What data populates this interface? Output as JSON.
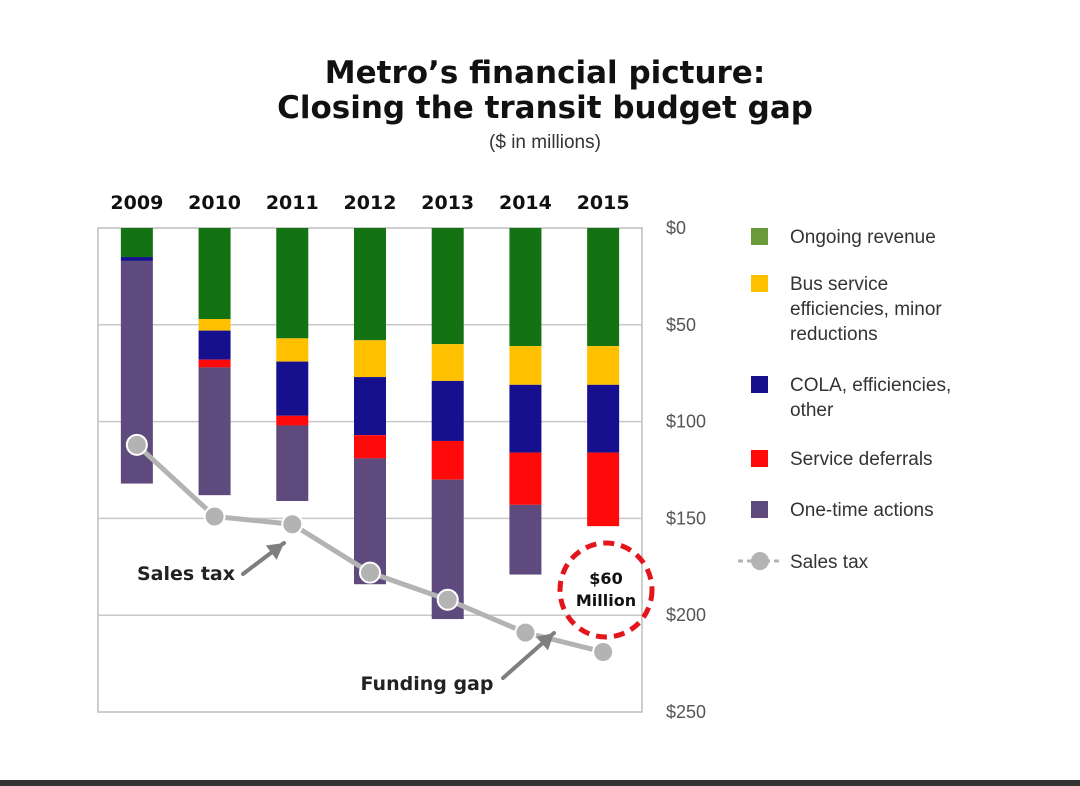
{
  "chart_data": {
    "type": "bar",
    "title_lines": [
      "Metro’s financial picture:",
      "Closing the transit budget gap"
    ],
    "subtitle": "($ in millions)",
    "categories": [
      "2009",
      "2010",
      "2011",
      "2012",
      "2013",
      "2014",
      "2015"
    ],
    "y_ticks": [
      "$0",
      "$50",
      "$100",
      "$150",
      "$200",
      "$250"
    ],
    "ylim": [
      0,
      250
    ],
    "y_inverted": true,
    "grid": true,
    "legend_position": "right",
    "series": [
      {
        "name": "Ongoing revenue",
        "color": "#137313",
        "values": [
          15,
          47,
          57,
          58,
          60,
          61,
          61
        ]
      },
      {
        "name": "Bus service efficiencies, minor reductions",
        "color": "#ffc000",
        "values": [
          0,
          6,
          12,
          19,
          19,
          20,
          20
        ]
      },
      {
        "name": "COLA, efficiencies, other",
        "color": "#16108f",
        "values": [
          2,
          15,
          28,
          30,
          31,
          35,
          35
        ]
      },
      {
        "name": "Service deferrals",
        "color": "#ff0a0a",
        "values": [
          0,
          4,
          5,
          12,
          20,
          27,
          38
        ]
      },
      {
        "name": "One-time actions",
        "color": "#5e4a7d",
        "values": [
          115,
          66,
          39,
          65,
          72,
          36,
          0
        ]
      }
    ],
    "sales_tax_line": {
      "name": "Sales tax",
      "color": "#b3b3b3",
      "values": [
        112,
        149,
        153,
        178,
        192,
        209,
        219
      ]
    },
    "legend": [
      {
        "label_lines": [
          "Ongoing revenue"
        ],
        "kind": "square",
        "color": "#6a9a3a"
      },
      {
        "label_lines": [
          "Bus service",
          "efficiencies, minor",
          "reductions"
        ],
        "kind": "square",
        "color": "#ffc000"
      },
      {
        "label_lines": [
          "COLA, efficiencies,",
          "other"
        ],
        "kind": "square",
        "color": "#16108f"
      },
      {
        "label_lines": [
          "Service deferrals"
        ],
        "kind": "square",
        "color": "#ff0a0a"
      },
      {
        "label_lines": [
          "One-time actions"
        ],
        "kind": "square",
        "color": "#5e4a7d"
      },
      {
        "label_lines": [
          "Sales tax"
        ],
        "kind": "line-marker",
        "color": "#b3b3b3"
      }
    ],
    "annotations": {
      "sales_tax": "Sales tax",
      "funding_gap": "Funding gap",
      "gap_amount_lines": [
        "$60",
        "Million"
      ],
      "gap_ring_color": "#e3151a",
      "arrow_color": "#7f7f7f"
    }
  }
}
